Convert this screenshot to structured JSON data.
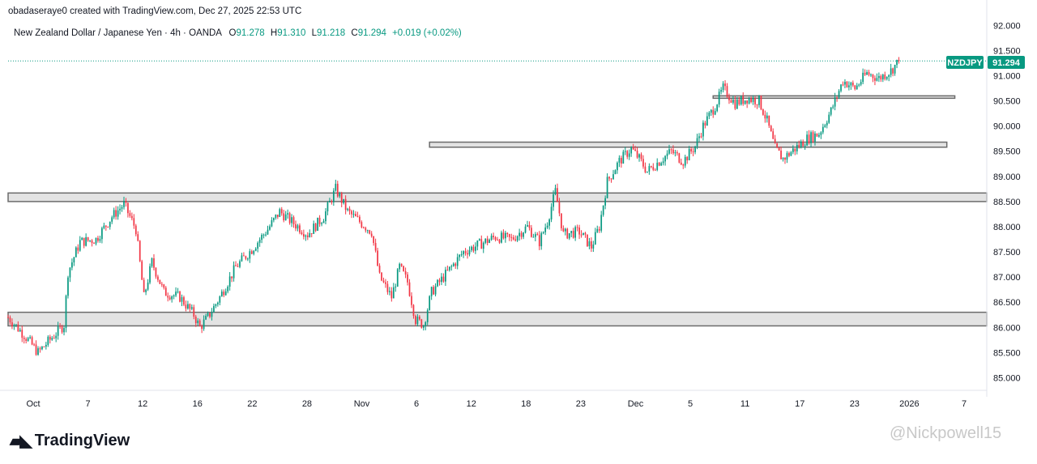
{
  "header": {
    "attribution": "obadaseraye0 created with TradingView.com, Dec 27, 2025 22:53 UTC"
  },
  "symbol_bar": {
    "name": "New Zealand Dollar / Japanese Yen · 4h · OANDA",
    "o_label": "O",
    "o_value": "91.278",
    "h_label": "H",
    "h_value": "91.310",
    "l_label": "L",
    "l_value": "91.218",
    "c_label": "C",
    "c_value": "91.294",
    "change": "+0.019 (+0.02%)"
  },
  "price_badge": {
    "ticker": "NZDJPY",
    "price": "91.294"
  },
  "footer": {
    "logo_text": "TradingView",
    "watermark": "@Nickpowell15"
  },
  "colors": {
    "up": "#089981",
    "down": "#f23645",
    "zone_fill": "#e3e3e3",
    "zone_border": "#6b6b6b",
    "badge": "#089981"
  },
  "chart_data": {
    "type": "candlestick",
    "title": "New Zealand Dollar / Japanese Yen · 4h · OANDA",
    "y_axis": {
      "ticks": [
        "92.000",
        "91.500",
        "91.000",
        "90.500",
        "90.000",
        "89.500",
        "89.000",
        "88.500",
        "88.000",
        "87.500",
        "87.000",
        "86.500",
        "86.000",
        "85.500",
        "85.000"
      ],
      "range": [
        84.75,
        92.15
      ]
    },
    "x_axis": {
      "ticks": [
        "Oct",
        "7",
        "12",
        "16",
        "22",
        "28",
        "Nov",
        "6",
        "12",
        "18",
        "23",
        "Dec",
        "5",
        "11",
        "17",
        "23",
        "2026",
        "7"
      ],
      "range_bars": [
        0,
        490
      ]
    },
    "zones": [
      {
        "low": 86.03,
        "high": 86.3,
        "start_bar": 0,
        "end_bar": 490
      },
      {
        "low": 88.5,
        "high": 88.67,
        "start_bar": 0,
        "end_bar": 490
      },
      {
        "low": 89.58,
        "high": 89.68,
        "start_bar": 211,
        "end_bar": 470
      },
      {
        "low": 90.56,
        "high": 90.6,
        "start_bar": 353,
        "end_bar": 474
      }
    ],
    "last_price": 91.294,
    "series": [
      {
        "bar": 0,
        "close": 86.2
      },
      {
        "bar": 8,
        "close": 85.85
      },
      {
        "bar": 15,
        "close": 85.5
      },
      {
        "bar": 22,
        "close": 85.8
      },
      {
        "bar": 28,
        "close": 86.05
      },
      {
        "bar": 30,
        "close": 87.1
      },
      {
        "bar": 36,
        "close": 87.7
      },
      {
        "bar": 44,
        "close": 87.75
      },
      {
        "bar": 52,
        "close": 88.2
      },
      {
        "bar": 58,
        "close": 88.45
      },
      {
        "bar": 64,
        "close": 87.95
      },
      {
        "bar": 68,
        "close": 86.6
      },
      {
        "bar": 72,
        "close": 87.3
      },
      {
        "bar": 78,
        "close": 86.7
      },
      {
        "bar": 86,
        "close": 86.6
      },
      {
        "bar": 93,
        "close": 86.25
      },
      {
        "bar": 96,
        "close": 86.0
      },
      {
        "bar": 100,
        "close": 86.2
      },
      {
        "bar": 106,
        "close": 86.6
      },
      {
        "bar": 114,
        "close": 87.2
      },
      {
        "bar": 122,
        "close": 87.55
      },
      {
        "bar": 130,
        "close": 87.95
      },
      {
        "bar": 136,
        "close": 88.3
      },
      {
        "bar": 142,
        "close": 88.1
      },
      {
        "bar": 150,
        "close": 87.85
      },
      {
        "bar": 158,
        "close": 88.2
      },
      {
        "bar": 164,
        "close": 88.75
      },
      {
        "bar": 170,
        "close": 88.3
      },
      {
        "bar": 176,
        "close": 88.1
      },
      {
        "bar": 182,
        "close": 87.9
      },
      {
        "bar": 186,
        "close": 87.0
      },
      {
        "bar": 192,
        "close": 86.6
      },
      {
        "bar": 196,
        "close": 87.2
      },
      {
        "bar": 200,
        "close": 86.9
      },
      {
        "bar": 204,
        "close": 86.15
      },
      {
        "bar": 208,
        "close": 86.05
      },
      {
        "bar": 212,
        "close": 86.7
      },
      {
        "bar": 220,
        "close": 87.1
      },
      {
        "bar": 228,
        "close": 87.5
      },
      {
        "bar": 236,
        "close": 87.65
      },
      {
        "bar": 244,
        "close": 87.8
      },
      {
        "bar": 252,
        "close": 87.75
      },
      {
        "bar": 260,
        "close": 88.0
      },
      {
        "bar": 266,
        "close": 87.7
      },
      {
        "bar": 270,
        "close": 88.1
      },
      {
        "bar": 274,
        "close": 88.7
      },
      {
        "bar": 278,
        "close": 87.85
      },
      {
        "bar": 286,
        "close": 87.9
      },
      {
        "bar": 292,
        "close": 87.6
      },
      {
        "bar": 296,
        "close": 88.0
      },
      {
        "bar": 300,
        "close": 88.9
      },
      {
        "bar": 306,
        "close": 89.3
      },
      {
        "bar": 312,
        "close": 89.55
      },
      {
        "bar": 316,
        "close": 89.35
      },
      {
        "bar": 320,
        "close": 89.1
      },
      {
        "bar": 326,
        "close": 89.3
      },
      {
        "bar": 332,
        "close": 89.5
      },
      {
        "bar": 338,
        "close": 89.3
      },
      {
        "bar": 344,
        "close": 89.6
      },
      {
        "bar": 348,
        "close": 90.0
      },
      {
        "bar": 354,
        "close": 90.4
      },
      {
        "bar": 358,
        "close": 90.75
      },
      {
        "bar": 364,
        "close": 90.45
      },
      {
        "bar": 370,
        "close": 90.55
      },
      {
        "bar": 376,
        "close": 90.5
      },
      {
        "bar": 380,
        "close": 90.1
      },
      {
        "bar": 384,
        "close": 89.55
      },
      {
        "bar": 388,
        "close": 89.35
      },
      {
        "bar": 394,
        "close": 89.55
      },
      {
        "bar": 400,
        "close": 89.75
      },
      {
        "bar": 406,
        "close": 89.85
      },
      {
        "bar": 412,
        "close": 90.3
      },
      {
        "bar": 418,
        "close": 90.9
      },
      {
        "bar": 424,
        "close": 90.75
      },
      {
        "bar": 430,
        "close": 91.05
      },
      {
        "bar": 436,
        "close": 90.95
      },
      {
        "bar": 442,
        "close": 91.1
      },
      {
        "bar": 446,
        "close": 91.294
      }
    ]
  }
}
